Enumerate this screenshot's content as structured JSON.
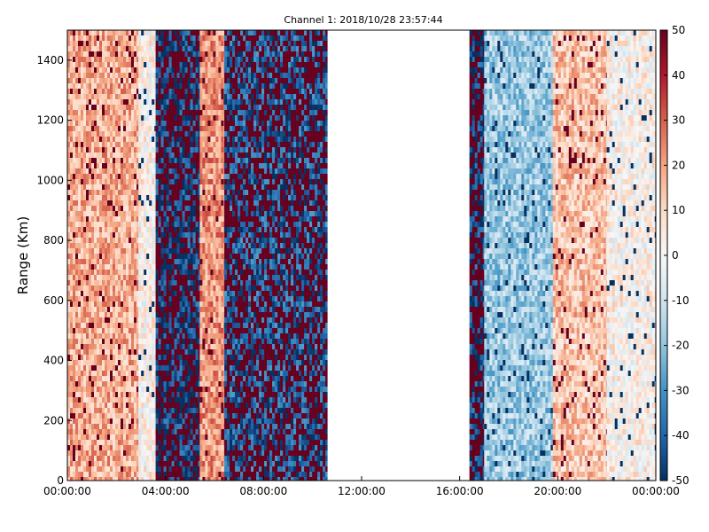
{
  "chart_data": {
    "type": "heatmap",
    "title": "Channel 1: 2018/10/28 23:57:44",
    "xlabel": "",
    "ylabel": "Range (Km)",
    "x_ticks": [
      "00:00:00",
      "04:00:00",
      "08:00:00",
      "12:00:00",
      "16:00:00",
      "20:00:00",
      "00:00:00"
    ],
    "x_range_hours": [
      0,
      24
    ],
    "y_ticks": [
      0,
      200,
      400,
      600,
      800,
      1000,
      1200,
      1400
    ],
    "ylim": [
      0,
      1500
    ],
    "colorbar": {
      "colormap": "RdBu_r",
      "range": [
        -50,
        50
      ],
      "ticks": [
        50,
        40,
        30,
        20,
        10,
        0,
        -10,
        -20,
        -30,
        -40,
        -50
      ]
    },
    "no_data_intervals_hours": [
      [
        10.6,
        15.9
      ],
      [
        16.15,
        16.4
      ]
    ],
    "grid": false,
    "regions": [
      {
        "hours": [
          0.0,
          2.9
        ],
        "mean_value": 18
      },
      {
        "hours": [
          2.9,
          3.6
        ],
        "mean_value": 2
      },
      {
        "hours": [
          3.6,
          5.4
        ],
        "mean_value": -45
      },
      {
        "hours": [
          5.4,
          6.4
        ],
        "mean_value": 22
      },
      {
        "hours": [
          6.4,
          10.6
        ],
        "mean_value": -40
      },
      {
        "hours": [
          16.4,
          17.0
        ],
        "mean_value": -45
      },
      {
        "hours": [
          17.0,
          19.8
        ],
        "mean_value": -18
      },
      {
        "hours": [
          19.8,
          22.0
        ],
        "mean_value": 14
      },
      {
        "hours": [
          22.0,
          24.0
        ],
        "mean_value": 2
      }
    ]
  }
}
